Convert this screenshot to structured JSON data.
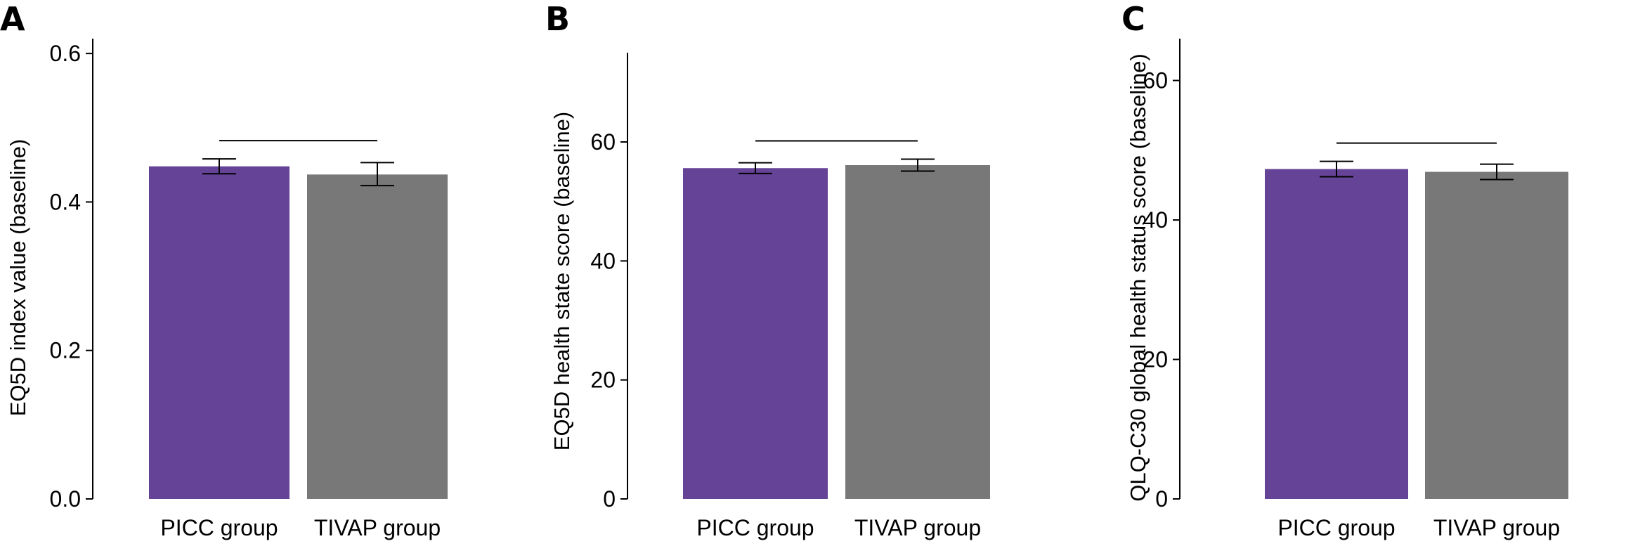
{
  "chart_data": [
    {
      "type": "bar",
      "panel": "A",
      "categories": [
        "PICC group",
        "TIVAP group"
      ],
      "values": [
        0.448,
        0.437
      ],
      "errors": [
        [
          0.438,
          0.458
        ],
        [
          0.422,
          0.453
        ]
      ],
      "colors": [
        "#654396",
        "#777877"
      ],
      "ylabel": "EQ5D index value (baseline)",
      "ylim": [
        0,
        0.62
      ],
      "yticks": [
        0.0,
        0.2,
        0.4,
        0.6
      ],
      "ytick_labels": [
        "0.0",
        "0.2",
        "0.4",
        "0.6"
      ],
      "comparison_bar": true
    },
    {
      "type": "bar",
      "panel": "B",
      "categories": [
        "PICC group",
        "TIVAP group"
      ],
      "values": [
        55.6,
        56.1
      ],
      "errors": [
        [
          54.7,
          56.5
        ],
        [
          55.1,
          57.1
        ]
      ],
      "colors": [
        "#654396",
        "#777877"
      ],
      "ylabel": "EQ5D health state score (baseline)",
      "ylim": [
        0,
        75
      ],
      "yticks": [
        0,
        20,
        40,
        60
      ],
      "ytick_labels": [
        "0",
        "20",
        "40",
        "60"
      ],
      "comparison_bar": true
    },
    {
      "type": "bar",
      "panel": "C",
      "categories": [
        "PICC group",
        "TIVAP group"
      ],
      "values": [
        47.3,
        46.9
      ],
      "errors": [
        [
          46.2,
          48.4
        ],
        [
          45.8,
          48.0
        ]
      ],
      "colors": [
        "#654396",
        "#777877"
      ],
      "ylabel": "QLQ-C30 global health status score (baseline)",
      "ylim": [
        0,
        66
      ],
      "yticks": [
        0,
        20,
        40,
        60
      ],
      "ytick_labels": [
        "0",
        "20",
        "40",
        "60"
      ],
      "comparison_bar": true
    }
  ]
}
